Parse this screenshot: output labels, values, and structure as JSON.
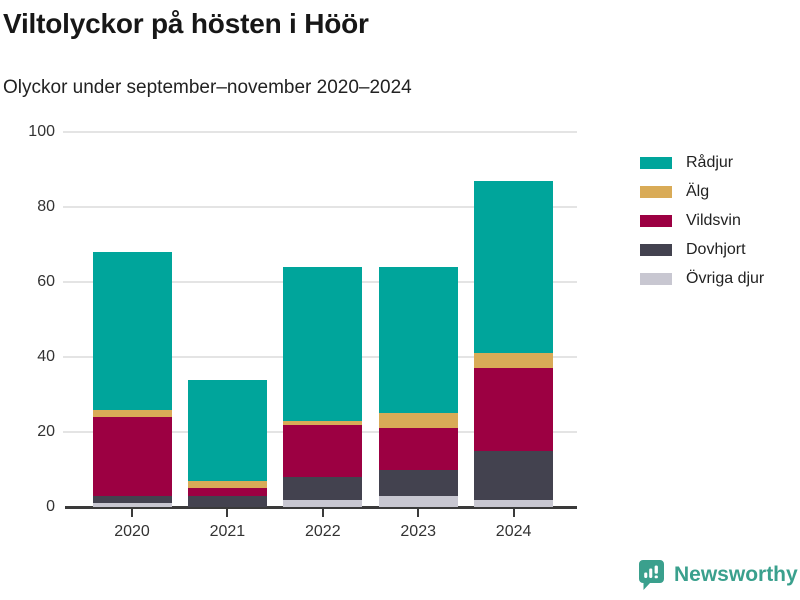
{
  "header": {
    "title": "Viltolyckor på hösten i Höör",
    "subtitle": "Olyckor under september–november 2020–2024"
  },
  "chart_data": {
    "type": "bar",
    "stacked": true,
    "categories": [
      "2020",
      "2021",
      "2022",
      "2023",
      "2024"
    ],
    "series": [
      {
        "name": "Rådjur",
        "color": "#00a59b",
        "values": [
          42,
          27,
          41,
          39,
          46
        ]
      },
      {
        "name": "Älg",
        "color": "#d9ab57",
        "values": [
          2,
          2,
          1,
          4,
          4
        ]
      },
      {
        "name": "Vildsvin",
        "color": "#9c0042",
        "values": [
          21,
          2,
          14,
          11,
          22
        ]
      },
      {
        "name": "Dovhjort",
        "color": "#43424f",
        "values": [
          2,
          3,
          6,
          7,
          13
        ]
      },
      {
        "name": "Övriga djur",
        "color": "#c8c7d1",
        "values": [
          1,
          0,
          2,
          3,
          2
        ]
      }
    ],
    "totals": [
      68,
      34,
      64,
      64,
      87
    ],
    "xlabel": "",
    "ylabel": "",
    "ylim": [
      0,
      100
    ],
    "yticks": [
      0,
      20,
      40,
      60,
      80,
      100
    ],
    "grid": true,
    "legend_position": "right",
    "axis_color": "#3a3a3a",
    "gridline_color": "#e4e4e4"
  },
  "footer": {
    "brand": "Newsworthy",
    "brand_color": "#3aa08d",
    "logo_icon": "bar-chart-speech-bubble-icon"
  }
}
